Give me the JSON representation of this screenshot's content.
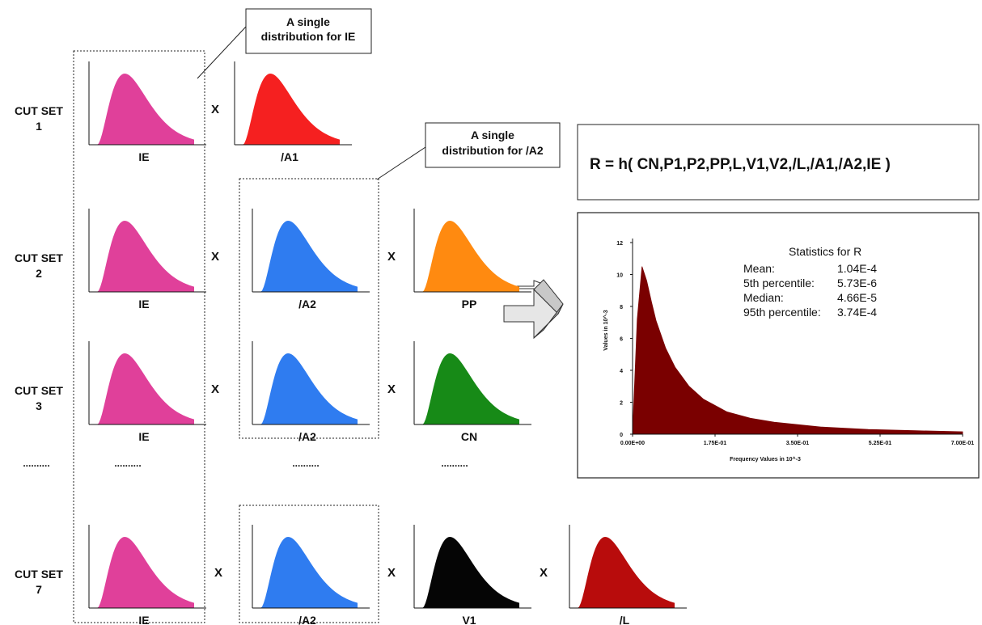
{
  "cut_sets": [
    {
      "label_line1": "CUT SET",
      "label_line2": "1",
      "factors": [
        "IE",
        "/A1"
      ]
    },
    {
      "label_line1": "CUT SET",
      "label_line2": "2",
      "factors": [
        "IE",
        "/A2",
        "PP"
      ]
    },
    {
      "label_line1": "CUT SET",
      "label_line2": "3",
      "factors": [
        "IE",
        "/A2",
        "CN"
      ]
    },
    {
      "label_line1": "CUT SET",
      "label_line2": "7",
      "factors": [
        "IE",
        "/A2",
        "V1",
        "/L"
      ]
    }
  ],
  "multiply_symbol": "X",
  "ellipsis": "..........",
  "callout_ie": {
    "line1": "A single",
    "line2": "distribution for IE"
  },
  "callout_a2": {
    "line1": "A single",
    "line2": "distribution for /A2"
  },
  "formula": "R = h( CN,P1,P2,PP,L,V1,V2,/L,/A1,/A2,IE )",
  "colors": {
    "IE": "#e0409a",
    "/A1": "#f52020",
    "/A2": "#2f7cf0",
    "PP": "#ff8a10",
    "CN": "#178a17",
    "V1": "#050505",
    "/L": "#b80c0c",
    "result": "#7a0000"
  },
  "result_panel": {
    "stats_title": "Statistics for R",
    "stats": [
      {
        "label": "Mean:",
        "value": "1.04E-4"
      },
      {
        "label": "5th percentile:",
        "value": "5.73E-6"
      },
      {
        "label": "Median:",
        "value": "4.66E-5"
      },
      {
        "label": "95th percentile:",
        "value": "3.74E-4"
      }
    ],
    "ylabel": "Values in 10^-3",
    "xlabel": "Frequency Values in 10^-3",
    "y_ticks": [
      "0",
      "2",
      "4",
      "6",
      "8",
      "10",
      "12"
    ],
    "x_ticks": [
      "0.00E+00",
      "1.75E-01",
      "3.50E-01",
      "5.25E-01",
      "7.00E-01"
    ]
  },
  "chart_data": {
    "type": "area",
    "xlabel": "Frequency Values in 10^-3",
    "ylabel": "Values in 10^-3",
    "xlim": [
      0,
      0.7
    ],
    "ylim": [
      0,
      12
    ],
    "x": [
      0,
      0.01,
      0.02,
      0.03,
      0.04,
      0.05,
      0.07,
      0.09,
      0.12,
      0.15,
      0.2,
      0.25,
      0.3,
      0.4,
      0.5,
      0.6,
      0.7
    ],
    "y": [
      0,
      7.2,
      10.5,
      9.6,
      8.3,
      7.1,
      5.4,
      4.2,
      3.0,
      2.2,
      1.4,
      1.0,
      0.75,
      0.45,
      0.3,
      0.22,
      0.15
    ]
  }
}
